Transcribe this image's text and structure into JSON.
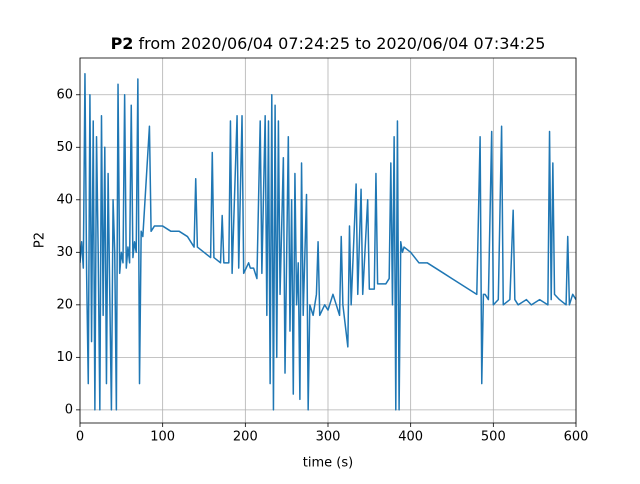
{
  "chart_data": {
    "type": "line",
    "title_parts": [
      "P2",
      "from 2020/06/04 07:24:25 to 2020/06/04 07:34:25"
    ],
    "xlabel": "time (s)",
    "ylabel": "P2",
    "xlim": [
      0,
      600
    ],
    "ylim": [
      -2.5,
      67
    ],
    "xticks": [
      0,
      100,
      200,
      300,
      400,
      500,
      600
    ],
    "yticks": [
      0,
      10,
      20,
      30,
      40,
      50,
      60
    ],
    "grid": true,
    "series": [
      {
        "color": "#1f77b4",
        "x": [
          0,
          2,
          4,
          6,
          8,
          10,
          12,
          14,
          16,
          18,
          20,
          22,
          24,
          26,
          28,
          30,
          32,
          34,
          36,
          38,
          40,
          42,
          44,
          46,
          48,
          50,
          52,
          54,
          56,
          58,
          60,
          62,
          64,
          66,
          68,
          70,
          72,
          74,
          76,
          84,
          86,
          90,
          100,
          110,
          120,
          130,
          138,
          140,
          142,
          150,
          158,
          160,
          162,
          170,
          172,
          174,
          180,
          182,
          184,
          190,
          192,
          196,
          198,
          204,
          206,
          210,
          214,
          218,
          220,
          224,
          226,
          228,
          230,
          232,
          234,
          236,
          238,
          240,
          242,
          246,
          248,
          252,
          254,
          256,
          258,
          260,
          262,
          264,
          266,
          268,
          270,
          274,
          276,
          278,
          282,
          286,
          288,
          290,
          296,
          300,
          306,
          310,
          314,
          316,
          318,
          324,
          326,
          328,
          334,
          336,
          340,
          342,
          348,
          350,
          356,
          358,
          360,
          366,
          370,
          374,
          376,
          378,
          380,
          382,
          384,
          386,
          388,
          390,
          392,
          400,
          410,
          420,
          430,
          440,
          450,
          460,
          470,
          480,
          484,
          486,
          488,
          490,
          494,
          498,
          500,
          506,
          510,
          512,
          520,
          524,
          526,
          530,
          540,
          546,
          556,
          566,
          568,
          570,
          572,
          574,
          580,
          588,
          590,
          592,
          596,
          600
        ],
        "values": [
          28,
          32,
          27,
          64,
          26,
          5,
          60,
          13,
          55,
          0,
          52,
          30,
          0,
          56,
          18,
          50,
          5,
          45,
          22,
          0,
          40,
          30,
          0,
          62,
          26,
          30,
          28,
          60,
          27,
          31,
          28,
          58,
          29,
          32,
          30,
          63,
          5,
          34,
          33,
          54,
          34,
          35,
          35,
          34,
          34,
          33,
          31,
          44,
          31,
          30,
          29,
          49,
          29,
          28,
          37,
          28,
          28,
          55,
          26,
          56,
          27,
          56,
          26,
          28,
          27,
          27,
          25,
          55,
          26,
          56,
          18,
          55,
          5,
          60,
          0,
          58,
          10,
          55,
          22,
          48,
          7,
          52,
          15,
          40,
          3,
          45,
          20,
          28,
          2,
          47,
          18,
          41,
          0,
          20,
          18,
          22,
          32,
          18,
          20,
          19,
          22,
          20,
          18,
          33,
          20,
          12,
          35,
          20,
          43,
          22,
          42,
          22,
          40,
          23,
          23,
          45,
          24,
          24,
          24,
          25,
          47,
          20,
          52,
          0,
          55,
          0,
          32,
          30,
          31,
          30,
          28,
          28,
          27,
          26,
          25,
          24,
          23,
          22,
          52,
          5,
          22,
          22,
          21,
          53,
          20,
          21,
          54,
          20,
          21,
          38,
          21,
          20,
          21,
          20,
          21,
          20,
          53,
          21,
          47,
          22,
          21,
          20,
          33,
          20,
          22,
          21
        ]
      }
    ]
  }
}
